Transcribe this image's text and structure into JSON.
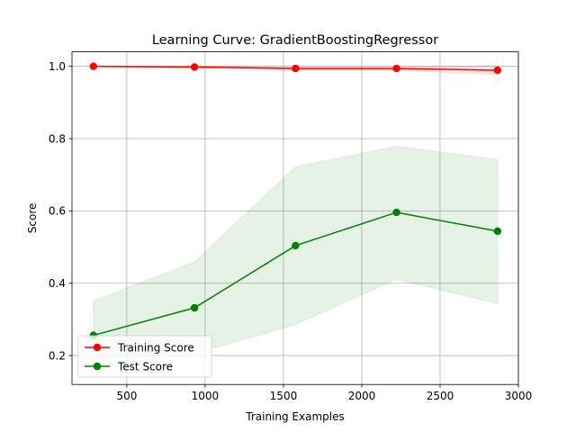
{
  "chart_data": {
    "type": "line",
    "title": "Learning Curve: GradientBoostingRegressor",
    "xlabel": "Training Examples",
    "ylabel": "Score",
    "xlim": [
      150,
      3000
    ],
    "ylim": [
      0.12,
      1.04
    ],
    "xticks": [
      500,
      1000,
      1500,
      2000,
      2500,
      3000
    ],
    "yticks": [
      0.2,
      0.4,
      0.6,
      0.8,
      1.0
    ],
    "grid": true,
    "legend_position": "lower-left",
    "x": [
      287,
      932,
      1577,
      2222,
      2867
    ],
    "series": [
      {
        "name": "Training Score",
        "color": "#ff0000",
        "values": [
          1.0,
          0.998,
          0.994,
          0.994,
          0.989
        ],
        "band_lower": [
          0.999,
          0.996,
          0.989,
          0.989,
          0.977
        ],
        "band_upper": [
          1.001,
          1.0,
          0.999,
          0.999,
          1.001
        ]
      },
      {
        "name": "Test Score",
        "color": "#008000",
        "values": [
          0.256,
          0.332,
          0.504,
          0.596,
          0.544
        ],
        "band_lower": [
          0.161,
          0.205,
          0.286,
          0.411,
          0.344
        ],
        "band_upper": [
          0.351,
          0.459,
          0.722,
          0.779,
          0.742
        ]
      }
    ]
  }
}
